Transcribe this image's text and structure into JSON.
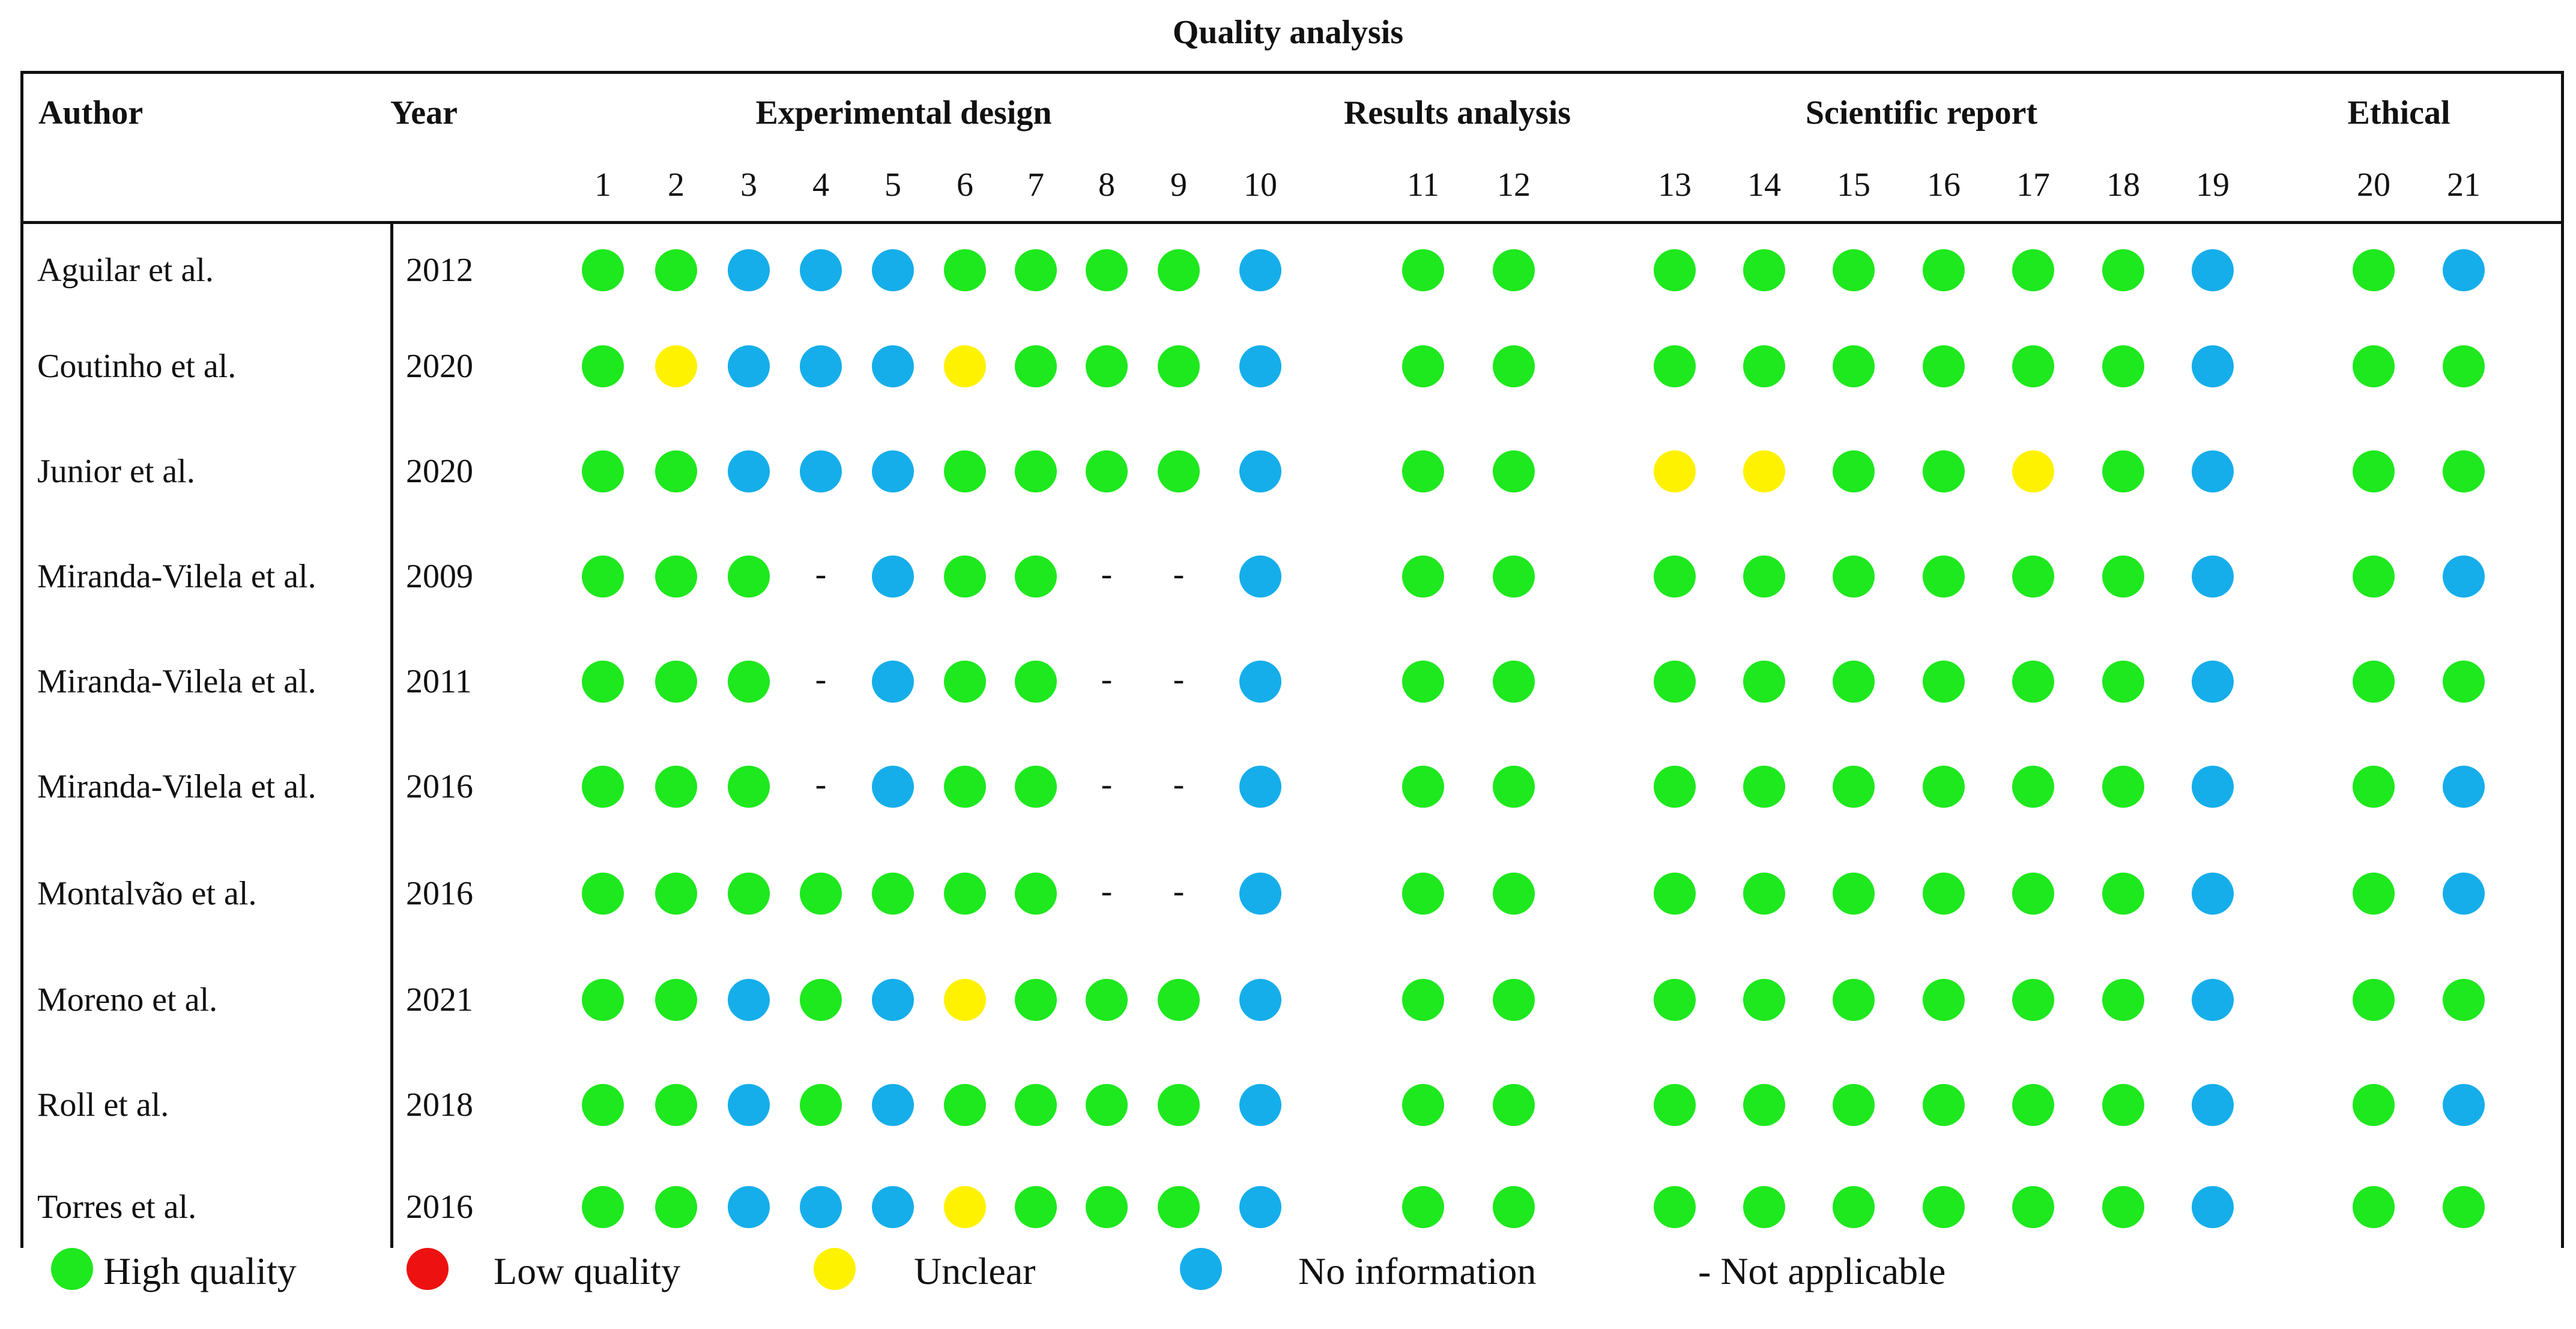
{
  "title": "Quality analysis",
  "headers": {
    "author": "Author",
    "year": "Year",
    "groups": [
      "Experimental design",
      "Results analysis",
      "Scientific report",
      "Ethical"
    ]
  },
  "criteria": [
    "1",
    "2",
    "3",
    "4",
    "5",
    "6",
    "7",
    "8",
    "9",
    "10",
    "11",
    "12",
    "13",
    "14",
    "15",
    "16",
    "17",
    "18",
    "19",
    "20",
    "21"
  ],
  "symbols": {
    "H": {
      "label": "High quality",
      "color": "#1ee81e",
      "icon": "green-circle"
    },
    "L": {
      "label": "Low quality",
      "color": "#ee1111",
      "icon": "red-circle"
    },
    "U": {
      "label": "Unclear",
      "color": "#fff200",
      "icon": "yellow-circle"
    },
    "N": {
      "label": "No information",
      "color": "#15aeea",
      "icon": "blue-circle"
    },
    "NA": {
      "label": "-",
      "icon": "dash"
    }
  },
  "legend": {
    "high": "High quality",
    "low": "Low quality",
    "unclear": "Unclear",
    "noinfo": "No information",
    "na": "- Not applicable"
  },
  "studies": [
    {
      "author": "Aguilar et al.",
      "year": "2012",
      "ratings": [
        "H",
        "H",
        "N",
        "N",
        "N",
        "H",
        "H",
        "H",
        "H",
        "N",
        "H",
        "H",
        "H",
        "H",
        "H",
        "H",
        "H",
        "H",
        "N",
        "H",
        "N"
      ]
    },
    {
      "author": "Coutinho et al.",
      "year": "2020",
      "ratings": [
        "H",
        "U",
        "N",
        "N",
        "N",
        "U",
        "H",
        "H",
        "H",
        "N",
        "H",
        "H",
        "H",
        "H",
        "H",
        "H",
        "H",
        "H",
        "N",
        "H",
        "H"
      ]
    },
    {
      "author": "Junior et al.",
      "year": "2020",
      "ratings": [
        "H",
        "H",
        "N",
        "N",
        "N",
        "H",
        "H",
        "H",
        "H",
        "N",
        "H",
        "H",
        "U",
        "U",
        "H",
        "H",
        "U",
        "H",
        "N",
        "H",
        "H"
      ]
    },
    {
      "author": "Miranda-Vilela et al.",
      "year": "2009",
      "ratings": [
        "H",
        "H",
        "H",
        "NA",
        "N",
        "H",
        "H",
        "NA",
        "NA",
        "N",
        "H",
        "H",
        "H",
        "H",
        "H",
        "H",
        "H",
        "H",
        "N",
        "H",
        "N"
      ]
    },
    {
      "author": "Miranda-Vilela et al.",
      "year": "2011",
      "ratings": [
        "H",
        "H",
        "H",
        "NA",
        "N",
        "H",
        "H",
        "NA",
        "NA",
        "N",
        "H",
        "H",
        "H",
        "H",
        "H",
        "H",
        "H",
        "H",
        "N",
        "H",
        "H"
      ]
    },
    {
      "author": "Miranda-Vilela et al.",
      "year": "2016",
      "ratings": [
        "H",
        "H",
        "H",
        "NA",
        "N",
        "H",
        "H",
        "NA",
        "NA",
        "N",
        "H",
        "H",
        "H",
        "H",
        "H",
        "H",
        "H",
        "H",
        "N",
        "H",
        "N"
      ]
    },
    {
      "author": "Montalvão et al.",
      "year": "2016",
      "ratings": [
        "H",
        "H",
        "H",
        "H",
        "H",
        "H",
        "H",
        "NA",
        "NA",
        "N",
        "H",
        "H",
        "H",
        "H",
        "H",
        "H",
        "H",
        "H",
        "N",
        "H",
        "N"
      ]
    },
    {
      "author": "Moreno et al.",
      "year": "2021",
      "ratings": [
        "H",
        "H",
        "N",
        "H",
        "N",
        "U",
        "H",
        "H",
        "H",
        "N",
        "H",
        "H",
        "H",
        "H",
        "H",
        "H",
        "H",
        "H",
        "N",
        "H",
        "H"
      ]
    },
    {
      "author": "Roll et al.",
      "year": "2018",
      "ratings": [
        "H",
        "H",
        "N",
        "H",
        "N",
        "H",
        "H",
        "H",
        "H",
        "N",
        "H",
        "H",
        "H",
        "H",
        "H",
        "H",
        "H",
        "H",
        "N",
        "H",
        "N"
      ]
    },
    {
      "author": "Torres et al.",
      "year": "2016",
      "ratings": [
        "H",
        "H",
        "N",
        "N",
        "N",
        "U",
        "H",
        "H",
        "H",
        "N",
        "H",
        "H",
        "H",
        "H",
        "H",
        "H",
        "H",
        "H",
        "N",
        "H",
        "H"
      ]
    }
  ]
}
